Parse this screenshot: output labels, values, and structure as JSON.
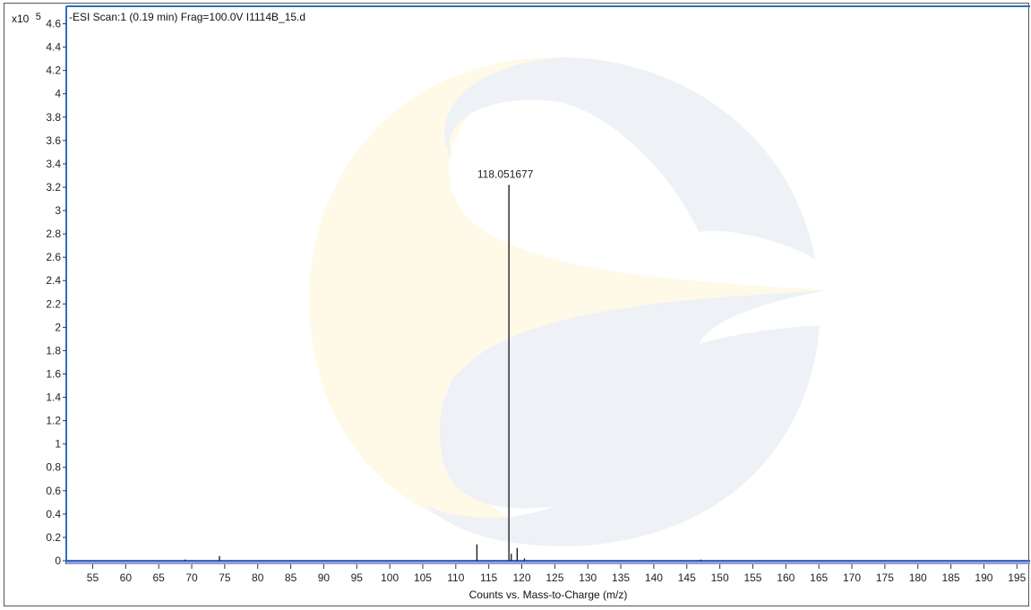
{
  "chart_data": {
    "type": "bar",
    "title": "-ESI Scan:1 (0.19 min) Frag=100.0V I1114B_15.d",
    "y_multiplier_label": "x10",
    "y_multiplier_exponent": "5",
    "xlabel": "Counts vs. Mass-to-Charge (m/z)",
    "ylabel": "",
    "xlim": [
      51,
      197
    ],
    "ylim": [
      0,
      4.75
    ],
    "x_ticks": [
      55,
      60,
      65,
      70,
      75,
      80,
      85,
      90,
      95,
      100,
      105,
      110,
      115,
      120,
      125,
      130,
      135,
      140,
      145,
      150,
      155,
      160,
      165,
      170,
      175,
      180,
      185,
      190,
      195
    ],
    "y_ticks": [
      0,
      0.2,
      0.4,
      0.6,
      0.8,
      1,
      1.2,
      1.4,
      1.6,
      1.8,
      2,
      2.2,
      2.4,
      2.6,
      2.8,
      3,
      3.2,
      3.4,
      3.6,
      3.8,
      4,
      4.2,
      4.4,
      4.6
    ],
    "y_tick_labels": [
      "0",
      "0.2",
      "0.4",
      "0.6",
      "0.8",
      "1",
      "1.2",
      "1.4",
      "1.6",
      "1.8",
      "2",
      "2.2",
      "2.4",
      "2.6",
      "2.8",
      "3",
      "3.2",
      "3.4",
      "3.6",
      "3.8",
      "4",
      "4.2",
      "4.4",
      "4.6"
    ],
    "peaks": [
      {
        "mz": 69.0,
        "value": 0.01
      },
      {
        "mz": 74.2,
        "value": 0.04
      },
      {
        "mz": 113.2,
        "value": 0.14
      },
      {
        "mz": 118.051677,
        "value": 3.22,
        "label": "118.051677"
      },
      {
        "mz": 118.4,
        "value": 0.06
      },
      {
        "mz": 119.3,
        "value": 0.11
      },
      {
        "mz": 120.4,
        "value": 0.02
      },
      {
        "mz": 147.1,
        "value": 0.01
      }
    ],
    "grid": false,
    "legend": "none",
    "colors": {
      "peak": "#111111",
      "axis": "#2f6fbf",
      "baseline": "#9a9ad6",
      "frame": "#555555"
    }
  }
}
